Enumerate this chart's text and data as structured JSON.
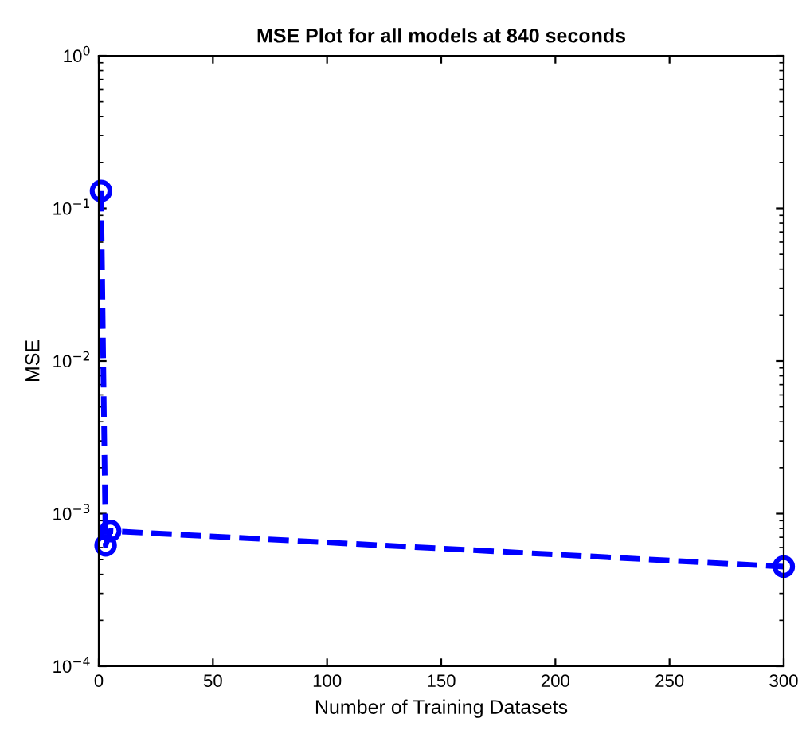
{
  "chart_data": {
    "type": "line",
    "title": "MSE Plot for all models at 840 seconds",
    "xlabel": "Number of Training Datasets",
    "ylabel": "MSE",
    "x": [
      1,
      3,
      5,
      300
    ],
    "series": [
      {
        "color": "#0000ff",
        "values": [
          0.13,
          0.00062,
          0.00077,
          0.00045
        ]
      }
    ],
    "log": "y",
    "marker": "circle",
    "line_style": "dashed",
    "grid": false,
    "legend": false,
    "xlim": [
      0,
      300
    ],
    "xticks": [
      0,
      50,
      100,
      150,
      200,
      250,
      300
    ],
    "ylim": [
      0.0001,
      1
    ],
    "yticks": [
      {
        "value": 0.0001,
        "label": "10$^{−4}$"
      },
      {
        "value": 0.001,
        "label": "10$^{−3}$"
      },
      {
        "value": 0.01,
        "label": "10$^{−2}$"
      },
      {
        "value": 0.1,
        "label": "10$^{−1}$"
      },
      {
        "value": 1,
        "label": "10$^{0}$"
      }
    ]
  }
}
